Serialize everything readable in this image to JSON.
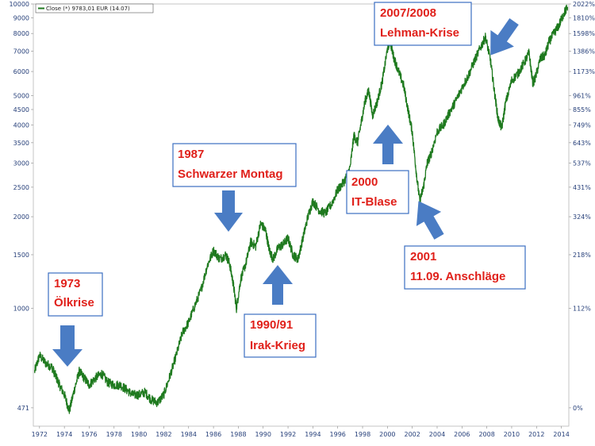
{
  "chart_data": {
    "type": "line",
    "legend": "Close (*) 9783,01 EUR (14.07)",
    "y_scale": "log",
    "ylim": [
      410,
      10000
    ],
    "xlim": [
      1971.5,
      2014.6
    ],
    "grid": false,
    "legend_position": "top-left",
    "y_ticks_left": [
      "10000",
      "9000",
      "8000",
      "7000",
      "6000",
      "5000",
      "4500",
      "4000",
      "3500",
      "3000",
      "2500",
      "2000",
      "1500",
      "1000",
      "471"
    ],
    "y_ticks_right": [
      "2022%",
      "1810%",
      "1598%",
      "1386%",
      "1173%",
      "961%",
      "855%",
      "749%",
      "643%",
      "537%",
      "431%",
      "324%",
      "218%",
      "112%",
      "0%"
    ],
    "x_ticks": [
      "1972",
      "1974",
      "1976",
      "1978",
      "1980",
      "1982",
      "1984",
      "1986",
      "1988",
      "1990",
      "1992",
      "1994",
      "1996",
      "1998",
      "2000",
      "2002",
      "2004",
      "2006",
      "2008",
      "2010",
      "2012",
      "2014"
    ],
    "series": [
      {
        "name": "Close (*) 9783,01 EUR (14.07)",
        "color": "#1f7a1f",
        "x": [
          1971.6,
          1972.0,
          1972.5,
          1973.0,
          1973.3,
          1973.6,
          1974.0,
          1974.4,
          1974.8,
          1975.2,
          1975.6,
          1976.0,
          1976.5,
          1977.0,
          1977.5,
          1978.0,
          1978.5,
          1979.0,
          1979.5,
          1980.0,
          1980.5,
          1981.0,
          1981.5,
          1982.0,
          1982.5,
          1983.0,
          1983.5,
          1984.0,
          1984.5,
          1985.0,
          1985.5,
          1986.0,
          1986.5,
          1987.0,
          1987.3,
          1987.6,
          1987.85,
          1988.2,
          1988.6,
          1989.0,
          1989.4,
          1989.8,
          1990.2,
          1990.5,
          1990.8,
          1991.2,
          1991.6,
          1992.0,
          1992.4,
          1992.8,
          1993.2,
          1993.6,
          1994.0,
          1994.5,
          1995.0,
          1995.5,
          1996.0,
          1996.5,
          1997.0,
          1997.3,
          1997.6,
          1997.9,
          1998.2,
          1998.5,
          1998.8,
          1999.2,
          1999.6,
          2000.0,
          2000.2,
          2000.5,
          2000.9,
          2001.3,
          2001.7,
          2002.0,
          2002.3,
          2002.6,
          2002.9,
          2003.2,
          2003.5,
          2004.0,
          2004.5,
          2005.0,
          2005.5,
          2006.0,
          2006.5,
          2007.0,
          2007.5,
          2007.9,
          2008.3,
          2008.6,
          2008.9,
          2009.2,
          2009.5,
          2010.0,
          2010.5,
          2011.0,
          2011.4,
          2011.7,
          2011.9,
          2012.3,
          2012.7,
          2013.0,
          2013.4,
          2013.8,
          2014.2,
          2014.5
        ],
        "values": [
          620,
          700,
          660,
          640,
          600,
          560,
          520,
          460,
          540,
          620,
          590,
          560,
          590,
          610,
          570,
          560,
          560,
          540,
          520,
          520,
          530,
          500,
          490,
          520,
          600,
          700,
          830,
          900,
          1020,
          1150,
          1380,
          1550,
          1450,
          1500,
          1400,
          1200,
          1000,
          1250,
          1400,
          1650,
          1600,
          1900,
          1800,
          1550,
          1450,
          1580,
          1620,
          1700,
          1500,
          1450,
          1700,
          2000,
          2250,
          2100,
          2050,
          2200,
          2450,
          2600,
          2900,
          3700,
          3500,
          4100,
          4800,
          5200,
          4300,
          4800,
          5600,
          7100,
          7600,
          6700,
          6000,
          5400,
          4400,
          3800,
          2850,
          2250,
          2500,
          3000,
          3200,
          3800,
          4000,
          4400,
          4800,
          5300,
          5800,
          6500,
          7200,
          7800,
          6500,
          5200,
          4200,
          3900,
          4700,
          5600,
          5900,
          6400,
          6900,
          5500,
          5700,
          6600,
          6800,
          7500,
          8000,
          8500,
          9300,
          9783
        ]
      }
    ]
  },
  "annotations": [
    {
      "lines": [
        "1973",
        "Ölkrise"
      ]
    },
    {
      "lines": [
        "1987",
        "Schwarzer Montag"
      ]
    },
    {
      "lines": [
        "1990/91",
        "Irak-Krieg"
      ]
    },
    {
      "lines": [
        "2000",
        "IT-Blase"
      ]
    },
    {
      "lines": [
        "2001",
        "11.09. Anschläge"
      ]
    },
    {
      "lines": [
        "2007/2008",
        "Lehman-Krise"
      ]
    }
  ],
  "colors": {
    "line": "#1f7a1f",
    "axis_text": "#27407a",
    "annotation_text": "#e0201a",
    "annotation_border": "#3b6fc2",
    "arrow": "#4a7cc4"
  }
}
